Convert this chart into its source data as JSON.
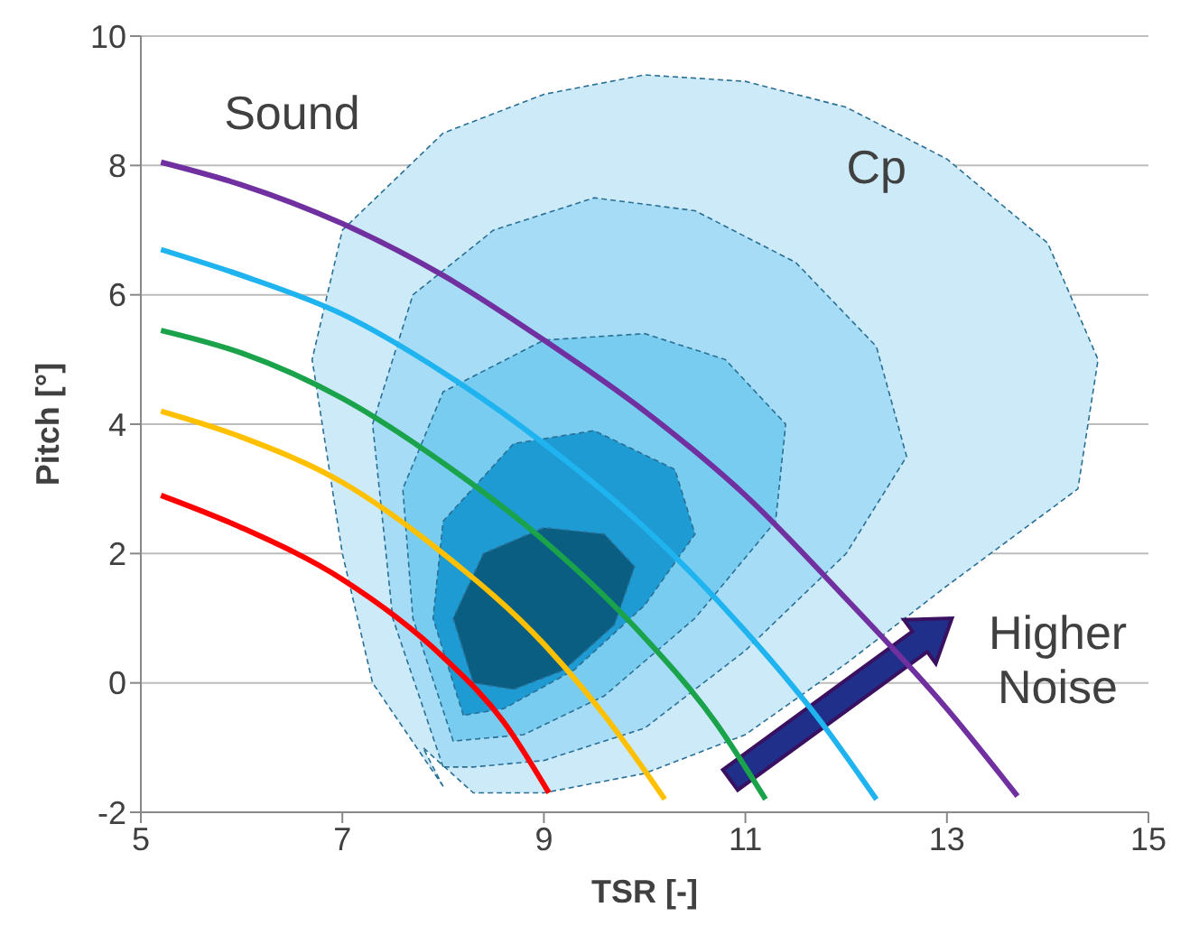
{
  "chart_data": {
    "type": "line",
    "xlabel": "TSR [-]",
    "ylabel": "Pitch [°]",
    "xlim": [
      5,
      15
    ],
    "xticks": [
      5,
      7,
      9,
      11,
      13,
      15
    ],
    "ylim": [
      -2,
      10
    ],
    "yticks": [
      -2,
      0,
      2,
      4,
      6,
      8,
      10
    ],
    "grid": "y",
    "legend": false,
    "marker": "none",
    "series": [
      {
        "type": "area",
        "color": "#cdeaf9",
        "x": [
          8,
          7.3,
          7,
          6.7,
          7,
          8,
          9,
          10,
          11,
          12,
          13,
          14,
          14.5,
          14.3,
          13,
          12,
          11,
          10,
          9,
          8.3,
          7.8
        ],
        "values": [
          -1.6,
          0,
          2,
          5,
          7,
          8.5,
          9.1,
          9.4,
          9.3,
          8.9,
          8.1,
          6.8,
          5,
          3,
          1.5,
          0.3,
          -0.8,
          -1.4,
          -1.7,
          -1.7,
          -1
        ]
      },
      {
        "type": "area",
        "color": "#a6dcf5",
        "x": [
          8,
          7.5,
          7.3,
          7.7,
          8.5,
          9.5,
          10.5,
          11.5,
          12.3,
          12.6,
          12,
          11,
          10,
          9,
          8.3
        ],
        "values": [
          -1.3,
          1,
          4,
          6,
          7,
          7.5,
          7.3,
          6.5,
          5.2,
          3.5,
          2,
          0.5,
          -0.7,
          -1.2,
          -1.3
        ]
      },
      {
        "type": "area",
        "color": "#78ccef",
        "x": [
          8.1,
          7.7,
          7.6,
          8,
          9,
          10,
          10.8,
          11.4,
          11.3,
          10.5,
          9.6,
          8.8
        ],
        "values": [
          -0.9,
          1,
          3,
          4.5,
          5.3,
          5.4,
          5,
          4,
          2.5,
          1,
          -0.2,
          -0.8
        ]
      },
      {
        "type": "area",
        "color": "#1f9bd3",
        "x": [
          8.2,
          7.9,
          8,
          8.7,
          9.5,
          10.3,
          10.5,
          10,
          9.3,
          8.6
        ],
        "values": [
          -0.5,
          1,
          2.5,
          3.7,
          3.9,
          3.3,
          2.3,
          1.2,
          0.2,
          -0.4
        ]
      },
      {
        "type": "area",
        "color": "#0a5e82",
        "x": [
          8.3,
          8.1,
          8.4,
          9,
          9.6,
          9.9,
          9.7,
          9.2,
          8.7
        ],
        "values": [
          0,
          1,
          2,
          2.4,
          2.3,
          1.8,
          0.9,
          0.2,
          -0.1
        ]
      },
      {
        "color": "#7030a0",
        "x": [
          5.2,
          6,
          7,
          8,
          9,
          10,
          11,
          12,
          13,
          13.7
        ],
        "values": [
          8.05,
          7.7,
          7.1,
          6.3,
          5.3,
          4.2,
          2.9,
          1.3,
          -0.4,
          -1.75
        ]
      },
      {
        "color": "#1fb4ef",
        "x": [
          5.2,
          6,
          7,
          8,
          9,
          10,
          11,
          11.7,
          12.3
        ],
        "values": [
          6.7,
          6.3,
          5.7,
          4.8,
          3.7,
          2.4,
          0.8,
          -0.5,
          -1.8
        ]
      },
      {
        "color": "#1aa34a",
        "x": [
          5.2,
          6,
          7,
          8,
          9,
          10,
          10.7,
          11.2
        ],
        "values": [
          5.45,
          5.1,
          4.4,
          3.4,
          2.2,
          0.7,
          -0.6,
          -1.8
        ]
      },
      {
        "color": "#ffc000",
        "x": [
          5.2,
          6,
          7,
          8,
          9,
          9.6,
          10.2
        ],
        "values": [
          4.2,
          3.8,
          3.1,
          2,
          0.6,
          -0.5,
          -1.8
        ]
      },
      {
        "color": "#ff0000",
        "x": [
          5.2,
          6,
          7,
          8,
          8.6,
          9.05
        ],
        "values": [
          2.9,
          2.4,
          1.6,
          0.4,
          -0.6,
          -1.7
        ]
      }
    ],
    "annotations": [
      "Sound",
      "Cp",
      "Higher Noise"
    ]
  }
}
